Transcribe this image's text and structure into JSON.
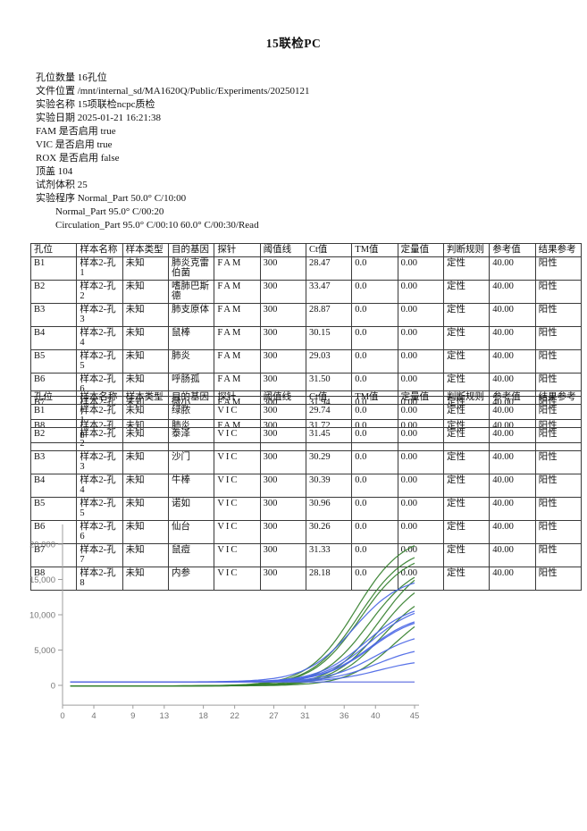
{
  "page": {
    "title": "15联检PC"
  },
  "info": {
    "lines": [
      {
        "label": "孔位数量",
        "value": "16孔位",
        "indent": false
      },
      {
        "label": "文件位置",
        "value": "/mnt/internal_sd/MA1620Q/Public/Experiments/20250121",
        "indent": false
      },
      {
        "label": "实验名称",
        "value": "15项联检ncpc质检",
        "indent": false
      },
      {
        "label": "实验日期",
        "value": "2025-01-21 16:21:38",
        "indent": false
      },
      {
        "label": "FAM 是否启用",
        "value": "true",
        "indent": false
      },
      {
        "label": "VIC 是否启用",
        "value": "true",
        "indent": false
      },
      {
        "label": "ROX 是否启用",
        "value": "false",
        "indent": false
      },
      {
        "label": "顶盖",
        "value": "104",
        "indent": false
      },
      {
        "label": "试剂体积",
        "value": "25",
        "indent": false
      },
      {
        "label": "实验程序",
        "value": "Normal_Part 50.0° C/10:00",
        "indent": false
      },
      {
        "label": "",
        "value": "Normal_Part 95.0° C/00:20",
        "indent": true
      },
      {
        "label": "",
        "value": "Circulation_Part 95.0° C/00:10 60.0° C/00:30/Read",
        "indent": true
      }
    ]
  },
  "tables": [
    {
      "name": "fam-results",
      "columns": [
        "孔位",
        "样本名称",
        "样本类型",
        "目的基因",
        "探针",
        "阈值线",
        "Ct值",
        "TM值",
        "定量值",
        "判断规则",
        "参考值",
        "结果参考"
      ],
      "rows": [
        [
          "B1",
          "样本2-孔1",
          "未知",
          "肺炎克雷伯菌",
          "FAM",
          "300",
          "28.47",
          "0.0",
          "0.00",
          "定性",
          "40.00",
          "阳性"
        ],
        [
          "B2",
          "样本2-孔2",
          "未知",
          "嗜肺巴斯德",
          "FAM",
          "300",
          "33.47",
          "0.0",
          "0.00",
          "定性",
          "40.00",
          "阳性"
        ],
        [
          "B3",
          "样本2-孔3",
          "未知",
          "肺支原体",
          "FAM",
          "300",
          "28.87",
          "0.0",
          "0.00",
          "定性",
          "40.00",
          "阳性"
        ],
        [
          "B4",
          "样本2-孔4",
          "未知",
          "鼠棒",
          "FAM",
          "300",
          "30.15",
          "0.0",
          "0.00",
          "定性",
          "40.00",
          "阳性"
        ],
        [
          "B5",
          "样本2-孔5",
          "未知",
          "肺炎",
          "FAM",
          "300",
          "29.03",
          "0.0",
          "0.00",
          "定性",
          "40.00",
          "阳性"
        ],
        [
          "B6",
          "样本2-孔6",
          "未知",
          "呼肠孤",
          "FAM",
          "300",
          "31.50",
          "0.0",
          "0.00",
          "定性",
          "40.00",
          "阳性"
        ],
        [
          "B7",
          "样本2-孔7",
          "未知",
          "微小",
          "FAM",
          "300",
          "31.94",
          "0.0",
          "0.00",
          "定性",
          "40.00",
          "阳性"
        ],
        [
          "B8",
          "样本2-孔8",
          "未知",
          "肺炎",
          "FAM",
          "300",
          "31.72",
          "0.0",
          "0.00",
          "定性",
          "40.00",
          "阳性"
        ]
      ]
    },
    {
      "name": "vic-results",
      "columns": [
        "孔位",
        "样本名称",
        "样本类型",
        "目的基因",
        "探针",
        "阈值线",
        "Ct值",
        "TM值",
        "定量值",
        "判断规则",
        "参考值",
        "结果参考"
      ],
      "rows": [
        [
          "B1",
          "样本2-孔1",
          "未知",
          "绿脓",
          "VIC",
          "300",
          "29.74",
          "0.0",
          "0.00",
          "定性",
          "40.00",
          "阳性"
        ],
        [
          "B2",
          "样本2-孔2",
          "未知",
          "泰泽",
          "VIC",
          "300",
          "31.45",
          "0.0",
          "0.00",
          "定性",
          "40.00",
          "阳性"
        ],
        [
          "B3",
          "样本2-孔3",
          "未知",
          "沙门",
          "VIC",
          "300",
          "30.29",
          "0.0",
          "0.00",
          "定性",
          "40.00",
          "阳性"
        ],
        [
          "B4",
          "样本2-孔4",
          "未知",
          "牛棒",
          "VIC",
          "300",
          "30.39",
          "0.0",
          "0.00",
          "定性",
          "40.00",
          "阳性"
        ],
        [
          "B5",
          "样本2-孔5",
          "未知",
          "诺如",
          "VIC",
          "300",
          "30.96",
          "0.0",
          "0.00",
          "定性",
          "40.00",
          "阳性"
        ],
        [
          "B6",
          "样本2-孔6",
          "未知",
          "仙台",
          "VIC",
          "300",
          "30.26",
          "0.0",
          "0.00",
          "定性",
          "40.00",
          "阳性"
        ],
        [
          "B7",
          "样本2-孔7",
          "未知",
          "鼠痘",
          "VIC",
          "300",
          "31.33",
          "0.0",
          "0.00",
          "定性",
          "40.00",
          "阳性"
        ],
        [
          "B8",
          "样本2-孔8",
          "未知",
          "内参",
          "VIC",
          "300",
          "28.18",
          "0.0",
          "0.00",
          "定性",
          "40.00",
          "阳性"
        ]
      ]
    }
  ],
  "chart_data": {
    "type": "line",
    "title": "",
    "xlabel": "",
    "ylabel": "",
    "x_ticks": [
      0,
      4,
      9,
      13,
      18,
      22,
      27,
      31,
      36,
      40,
      45
    ],
    "y_ticks": [
      {
        "value": 0,
        "label": "0"
      },
      {
        "value": 5000,
        "label": "5,000"
      },
      {
        "value": 10000,
        "label": "10,000"
      },
      {
        "value": 15000,
        "label": "15,000"
      },
      {
        "value": 20000,
        "label": "20,000"
      }
    ],
    "xlim": [
      0,
      45
    ],
    "ylim": [
      -2800,
      22800
    ],
    "grid": false,
    "legend": "none",
    "colors": {
      "fam": "#35802e",
      "vic": "#4a66e6",
      "flat": "#5b6be0",
      "axis": "#9e9e9e"
    },
    "series": [
      {
        "name": "B1-FAM",
        "channel": "fam",
        "ct": 28.47,
        "baseline": -80,
        "end": 19800,
        "flat": false
      },
      {
        "name": "B3-FAM",
        "channel": "fam",
        "ct": 28.87,
        "baseline": -80,
        "end": 18100,
        "flat": false
      },
      {
        "name": "B5-FAM",
        "channel": "fam",
        "ct": 29.03,
        "baseline": -80,
        "end": 17300,
        "flat": false
      },
      {
        "name": "B4-FAM",
        "channel": "fam",
        "ct": 30.15,
        "baseline": -80,
        "end": 15300,
        "flat": false
      },
      {
        "name": "B6-FAM",
        "channel": "fam",
        "ct": 31.5,
        "baseline": -80,
        "end": 14900,
        "flat": false
      },
      {
        "name": "B8-FAM",
        "channel": "fam",
        "ct": 31.72,
        "baseline": -80,
        "end": 13100,
        "flat": false
      },
      {
        "name": "B7-FAM",
        "channel": "fam",
        "ct": 31.94,
        "baseline": -80,
        "end": 11200,
        "flat": false
      },
      {
        "name": "B2-FAM",
        "channel": "fam",
        "ct": 33.47,
        "baseline": -80,
        "end": 8300,
        "flat": false
      },
      {
        "name": "B8-VIC",
        "channel": "vic",
        "ct": 28.18,
        "baseline": 480,
        "end": 14500,
        "flat": false
      },
      {
        "name": "B1-VIC",
        "channel": "vic",
        "ct": 29.74,
        "baseline": 480,
        "end": 10500,
        "flat": false
      },
      {
        "name": "B6-VIC",
        "channel": "vic",
        "ct": 30.26,
        "baseline": 480,
        "end": 10200,
        "flat": false
      },
      {
        "name": "B3-VIC",
        "channel": "vic",
        "ct": 30.29,
        "baseline": 480,
        "end": 9000,
        "flat": false
      },
      {
        "name": "B4-VIC",
        "channel": "vic",
        "ct": 30.39,
        "baseline": 480,
        "end": 8800,
        "flat": false
      },
      {
        "name": "B5-VIC",
        "channel": "vic",
        "ct": 30.96,
        "baseline": 480,
        "end": 6600,
        "flat": false
      },
      {
        "name": "B7-VIC",
        "channel": "vic",
        "ct": 31.33,
        "baseline": 480,
        "end": 4800,
        "flat": false
      },
      {
        "name": "B2-VIC",
        "channel": "vic",
        "ct": 31.45,
        "baseline": 480,
        "end": 3200,
        "flat": false
      },
      {
        "name": "flat-line",
        "channel": "flat",
        "ct": null,
        "baseline": 480,
        "end": 480,
        "flat": true
      }
    ]
  }
}
